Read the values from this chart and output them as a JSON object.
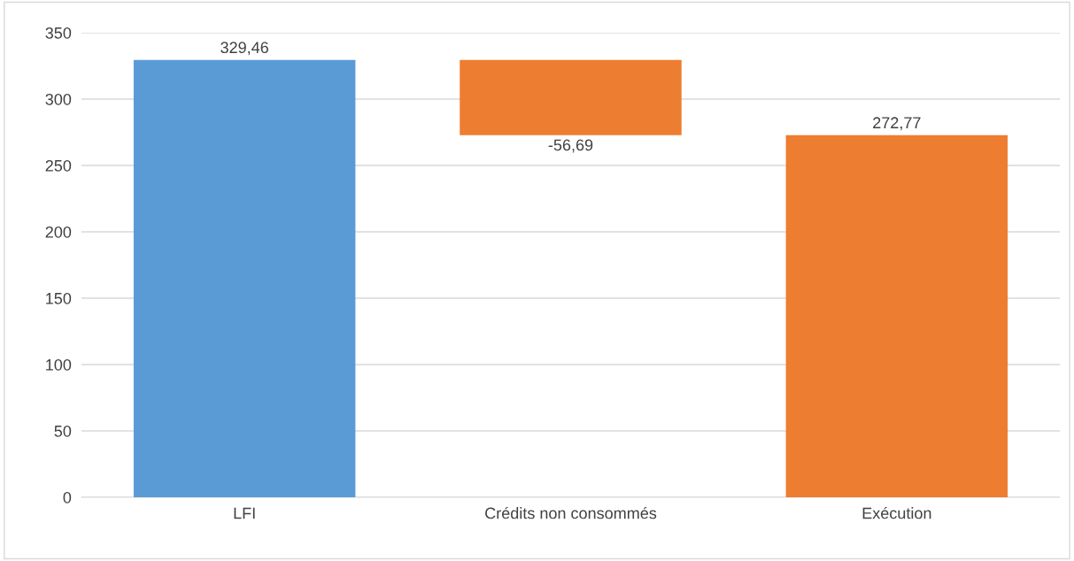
{
  "chart_data": {
    "type": "bar",
    "categories": [
      "LFI",
      "Crédits non consommés",
      "Exécution"
    ],
    "values": [
      329.46,
      -56.69,
      272.77
    ],
    "base": [
      0,
      329.46,
      0
    ],
    "colors": [
      "#5b9bd5",
      "#ed7d31",
      "#ed7d31"
    ],
    "value_labels": [
      "329,46",
      "-56,69",
      "272,77"
    ],
    "ylim": [
      0,
      350
    ],
    "yticks": [
      0,
      50,
      100,
      150,
      200,
      250,
      300,
      350
    ],
    "grid": "y"
  }
}
